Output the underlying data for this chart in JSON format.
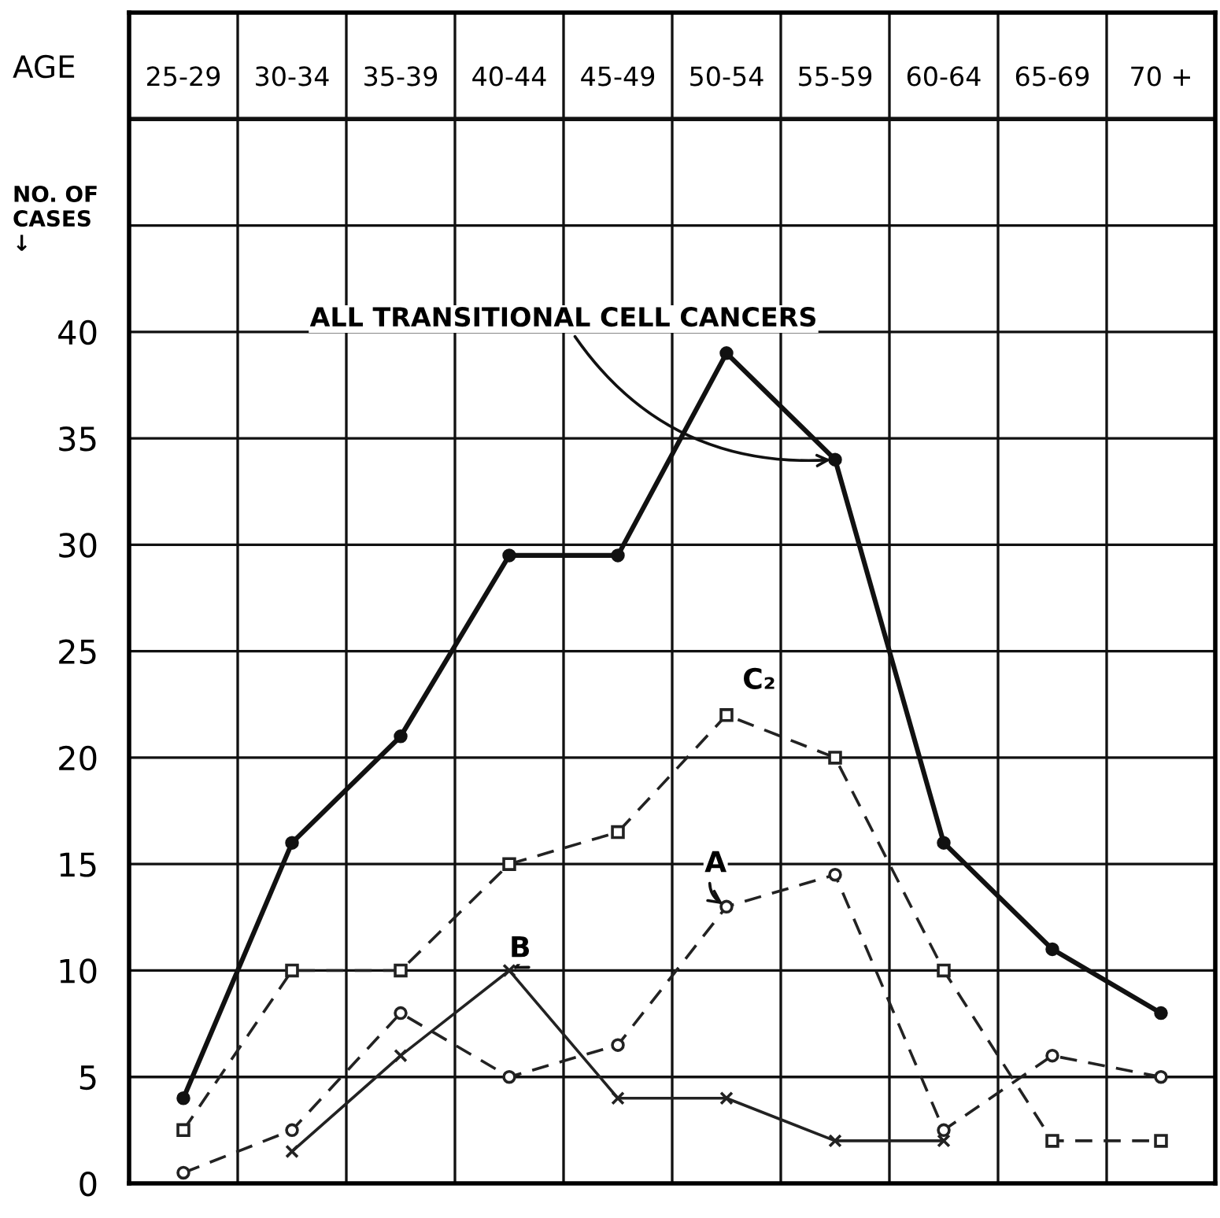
{
  "chart_data": {
    "type": "line",
    "xlabel": "AGE",
    "ylabel": "NO. OF\nCASES\n↓",
    "categories": [
      "25-29",
      "30-34",
      "35-39",
      "40-44",
      "45-49",
      "50-54",
      "55-59",
      "60-64",
      "65-69",
      "70 +"
    ],
    "series": [
      {
        "color": "#111111",
        "marker": "circle",
        "line_style": "solid",
        "values": [
          4,
          16,
          21,
          29.5,
          29.5,
          39,
          34,
          16,
          11,
          8
        ]
      },
      {
        "color": "#222222",
        "marker": "square",
        "line_style": "dashed",
        "values": [
          2.5,
          10,
          10,
          15,
          16.5,
          22,
          20,
          10,
          2,
          2
        ]
      },
      {
        "color": "#222222",
        "marker": "circle",
        "line_style": "dashed",
        "values": [
          0.5,
          2.5,
          8,
          5,
          6.5,
          13,
          14.5,
          2.5,
          6,
          5
        ]
      },
      {
        "color": "#222222",
        "marker": "cross",
        "line_style": "solid",
        "values": [
          null,
          1.5,
          6,
          10,
          4,
          4,
          2,
          2,
          null,
          null
        ]
      }
    ],
    "ylim": [
      0,
      55
    ],
    "yticks": [
      0,
      5,
      10,
      15,
      20,
      25,
      30,
      35,
      40,
      {
        "value": 45,
        "label": null
      },
      {
        "value": 50,
        "label": null
      }
    ],
    "grid": true,
    "annotations": [
      {
        "text": "ALL TRANSITIONAL CELL CANCERS",
        "x": "55-59",
        "y": 34
      },
      {
        "text": "C₂",
        "x": "50-54",
        "y": 22
      },
      {
        "text": "A",
        "x": "50-54",
        "y": 13
      },
      {
        "text": "B",
        "x": "40-44",
        "y": 10
      }
    ]
  }
}
